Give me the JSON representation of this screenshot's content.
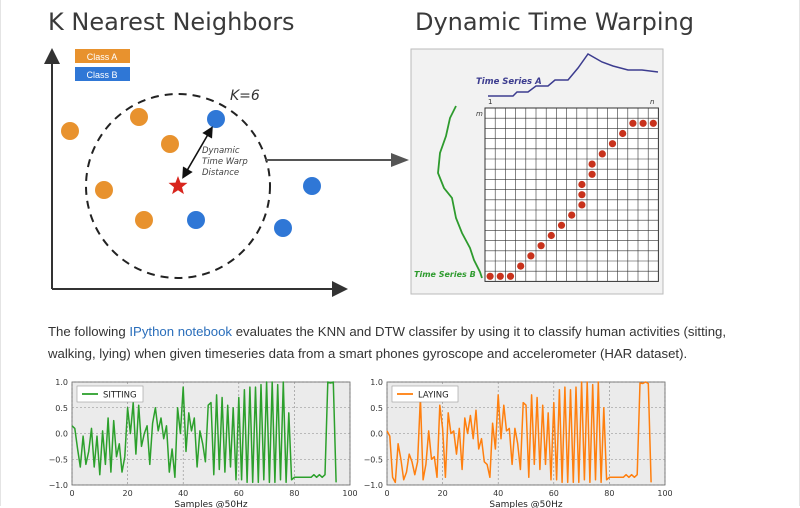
{
  "knn": {
    "title": "K Nearest Neighbors",
    "legend": [
      {
        "label": "Class A",
        "color": "#e8922e"
      },
      {
        "label": "Class B",
        "color": "#2f77d6"
      }
    ],
    "k_label": "K=6",
    "distance_label_lines": [
      "Dynamic",
      "Time Warp",
      "Distance"
    ],
    "class_a_color": "#e8922e",
    "class_b_color": "#2f77d6",
    "query_color": "#d8251d"
  },
  "dtw": {
    "title": "Dynamic Time Warping",
    "series_a_label": "Time Series A",
    "series_b_label": "Time Series B",
    "index_1": "1",
    "index_n": "n",
    "index_m": "m",
    "series_a_color": "#3c3c8f",
    "series_b_color": "#2e9b2e",
    "path_color": "#c8321c"
  },
  "paragraph": {
    "before_link": "The following ",
    "link_text": "IPython notebook",
    "after_link": " evaluates the KNN and DTW classifer by using it to classify human activities (sitting, walking, lying) when given timeseries data from a smart phones gyroscope and accelerometer (HAR dataset)."
  },
  "chart_data": [
    {
      "type": "line",
      "title": "",
      "xlabel": "Samples @50Hz",
      "ylabel": "",
      "xlim": [
        0,
        100
      ],
      "ylim": [
        -1.0,
        1.0
      ],
      "xticks": [
        "0",
        "20",
        "40",
        "60",
        "80",
        "100"
      ],
      "yticks": [
        "1.0",
        "0.5",
        "0.0",
        "−0.5",
        "−1.0"
      ],
      "grid": true,
      "legend_position": "top-left",
      "series": [
        {
          "name": "SITTING",
          "color": "#2ca02c",
          "x": [
            0,
            1,
            2,
            3,
            4,
            5,
            6,
            7,
            8,
            9,
            10,
            11,
            12,
            13,
            14,
            15,
            16,
            17,
            18,
            19,
            20,
            21,
            22,
            23,
            24,
            25,
            26,
            27,
            28,
            29,
            30,
            31,
            32,
            33,
            34,
            35,
            36,
            37,
            38,
            39,
            40,
            41,
            42,
            43,
            44,
            45,
            46,
            47,
            48,
            49,
            50,
            51,
            52,
            53,
            54,
            55,
            56,
            57,
            58,
            59,
            60,
            61,
            62,
            63,
            64,
            65,
            66,
            67,
            68,
            69,
            70,
            71,
            72,
            73,
            74,
            75,
            76,
            77,
            78,
            79,
            80,
            81,
            82,
            83,
            84,
            85,
            86,
            87,
            88,
            89,
            90,
            91,
            92,
            93,
            94,
            95
          ],
          "y": [
            0.15,
            0.1,
            -0.3,
            -0.65,
            -0.05,
            -0.6,
            -0.35,
            0.1,
            -0.65,
            -0.05,
            -0.8,
            0.05,
            -0.6,
            0.3,
            -0.75,
            0.25,
            -0.45,
            -0.2,
            -0.75,
            -0.45,
            0.5,
            0.0,
            0.6,
            -0.4,
            0.55,
            -0.25,
            0.0,
            0.15,
            -0.6,
            0.2,
            0.5,
            0.05,
            0.3,
            -0.1,
            0.15,
            -0.75,
            -0.3,
            -0.85,
            0.5,
            0.0,
            0.9,
            -0.35,
            0.4,
            0.05,
            0.3,
            -0.65,
            0.05,
            -0.2,
            -0.55,
            0.55,
            0.6,
            -0.8,
            0.75,
            -0.7,
            0.7,
            -0.75,
            0.55,
            -0.65,
            0.5,
            -0.9,
            0.7,
            -0.9,
            0.85,
            -0.95,
            0.9,
            -0.95,
            0.9,
            -0.95,
            0.95,
            -0.9,
            1.0,
            -0.95,
            1.0,
            -0.95,
            0.95,
            -0.9,
            1.0,
            -0.95,
            0.4,
            -0.9,
            -0.85,
            -0.85,
            -0.85,
            -0.85,
            -0.85,
            -0.85,
            -0.85,
            -0.8,
            -0.85,
            -0.8,
            -0.85,
            -0.8,
            1.0,
            0.98,
            1.0,
            -0.95
          ]
        }
      ]
    },
    {
      "type": "line",
      "title": "",
      "xlabel": "Samples @50Hz",
      "ylabel": "",
      "xlim": [
        0,
        100
      ],
      "ylim": [
        -1.0,
        1.0
      ],
      "xticks": [
        "0",
        "20",
        "40",
        "60",
        "80",
        "100"
      ],
      "yticks": [
        "1.0",
        "0.5",
        "0.0",
        "−0.5",
        "−1.0"
      ],
      "grid": true,
      "legend_position": "top-left",
      "series": [
        {
          "name": "LAYING",
          "color": "#ff7f0e",
          "x": [
            0,
            1,
            2,
            3,
            4,
            5,
            6,
            7,
            8,
            9,
            10,
            11,
            12,
            13,
            14,
            15,
            16,
            17,
            18,
            19,
            20,
            21,
            22,
            23,
            24,
            25,
            26,
            27,
            28,
            29,
            30,
            31,
            32,
            33,
            34,
            35,
            36,
            37,
            38,
            39,
            40,
            41,
            42,
            43,
            44,
            45,
            46,
            47,
            48,
            49,
            50,
            51,
            52,
            53,
            54,
            55,
            56,
            57,
            58,
            59,
            60,
            61,
            62,
            63,
            64,
            65,
            66,
            67,
            68,
            69,
            70,
            71,
            72,
            73,
            74,
            75,
            76,
            77,
            78,
            79,
            80,
            81,
            82,
            83,
            84,
            85,
            86,
            87,
            88,
            89,
            90,
            91,
            92,
            93,
            94,
            95
          ],
          "y": [
            0.05,
            -0.05,
            -0.85,
            -0.95,
            -0.2,
            -0.5,
            -0.9,
            -0.75,
            -0.4,
            -0.55,
            -0.8,
            -0.55,
            0.7,
            -0.9,
            -0.6,
            0.05,
            -0.5,
            -0.45,
            -0.85,
            0.55,
            0.1,
            -0.85,
            0.4,
            0.0,
            0.05,
            -0.4,
            0.1,
            -0.7,
            0.3,
            0.0,
            0.35,
            -0.1,
            0.45,
            -0.3,
            -0.1,
            -0.55,
            -0.6,
            -0.85,
            0.2,
            -0.3,
            0.75,
            -0.1,
            0.55,
            0.05,
            0.1,
            -0.6,
            0.1,
            -0.2,
            -0.7,
            0.6,
            0.55,
            -0.85,
            0.75,
            -0.6,
            0.7,
            -0.7,
            0.55,
            -0.6,
            0.4,
            -0.9,
            0.6,
            -0.9,
            0.85,
            -0.95,
            0.9,
            -0.95,
            0.85,
            -0.95,
            0.9,
            -0.95,
            1.0,
            -0.9,
            1.0,
            -0.95,
            0.95,
            -0.9,
            1.0,
            -0.95,
            0.5,
            -0.9,
            -0.85,
            -0.85,
            -0.85,
            -0.85,
            -0.85,
            -0.85,
            -0.8,
            -0.85,
            -0.8,
            -0.85,
            -0.8,
            0.98,
            0.97,
            1.0,
            0.97,
            -0.95
          ]
        }
      ]
    }
  ]
}
